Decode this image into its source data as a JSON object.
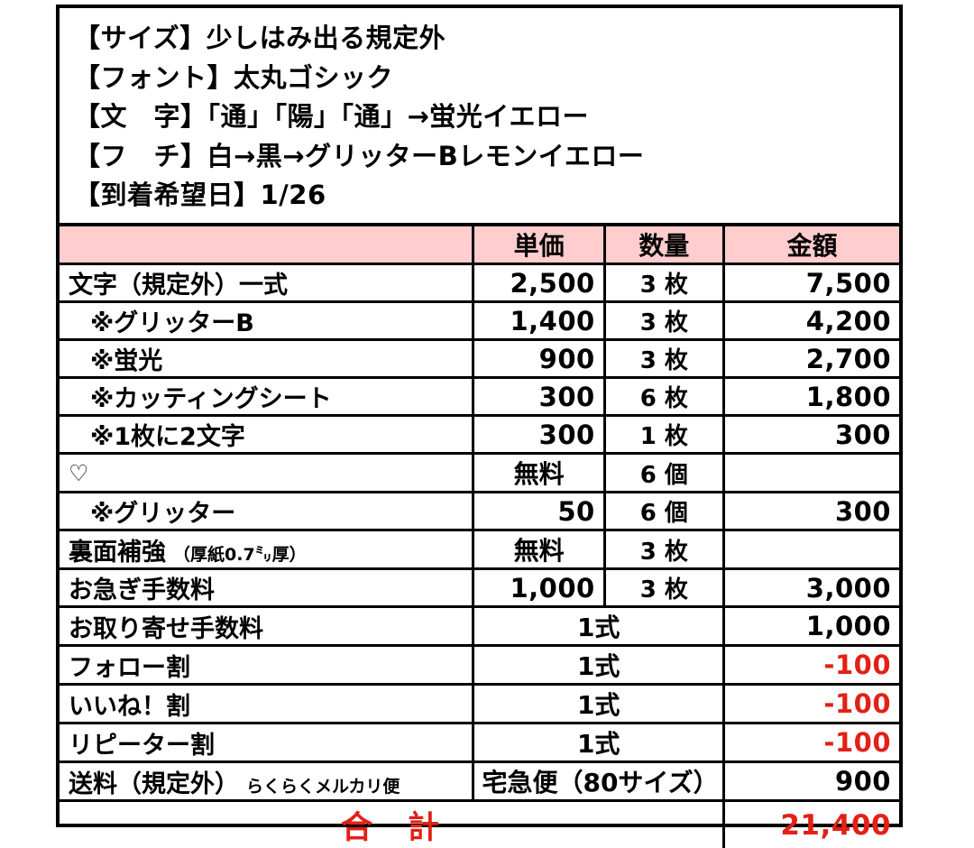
{
  "spec": {
    "lines": [
      "【サイズ】少しはみ出る規定外",
      "【フォント】太丸ゴシック",
      "【文　字】「通」「陽」「通」→蛍光イエロー",
      "【フ　チ】白→黒→グリッターBレモンイエロー",
      "【到着希望日】1/26"
    ]
  },
  "table": {
    "headers": {
      "item": "",
      "unit_price": "単価",
      "quantity": "数量",
      "amount": "金額"
    },
    "rows": [
      {
        "name": "文字（規定外）一式",
        "unit_price": "2,500",
        "quantity": "3 枚",
        "amount": "7,500"
      },
      {
        "name": "※グリッターB",
        "unit_price": "1,400",
        "quantity": "3 枚",
        "amount": "4,200"
      },
      {
        "name": "※蛍光",
        "unit_price": "900",
        "quantity": "3 枚",
        "amount": "2,700"
      },
      {
        "name": "※カッティングシート",
        "unit_price": "300",
        "quantity": "6 枚",
        "amount": "1,800"
      },
      {
        "name": "※1枚に2文字",
        "unit_price": "300",
        "quantity": "1 枚",
        "amount": "300"
      },
      {
        "name": "♡",
        "unit_price": "無料",
        "quantity": "6 個",
        "amount": ""
      },
      {
        "name": "※グリッター",
        "unit_price": "50",
        "quantity": "6 個",
        "amount": "300"
      },
      {
        "name": "裏面補強",
        "note": "（厚紙0.7㍉厚）",
        "unit_price": "無料",
        "quantity": "3 枚",
        "amount": ""
      },
      {
        "name": "お急ぎ手数料",
        "unit_price": "1,000",
        "quantity": "3 枚",
        "amount": "3,000"
      },
      {
        "name": "お取り寄せ手数料",
        "merged": "1式",
        "amount": "1,000"
      },
      {
        "name": "フォロー割",
        "merged": "1式",
        "amount": "-100"
      },
      {
        "name": "いいね！割",
        "merged": "1式",
        "amount": "-100"
      },
      {
        "name": "リピーター割",
        "merged": "1式",
        "amount": "-100"
      },
      {
        "name": "送料（規定外）",
        "note": "らくらくメルカリ便",
        "merged": "宅急便（80サイズ）",
        "amount": "900"
      }
    ],
    "total": {
      "label": "合　計",
      "amount": "21,400"
    }
  },
  "colors": {
    "header_bg": "#ffcdcd",
    "accent_red": "#e32017",
    "border": "#000000"
  }
}
